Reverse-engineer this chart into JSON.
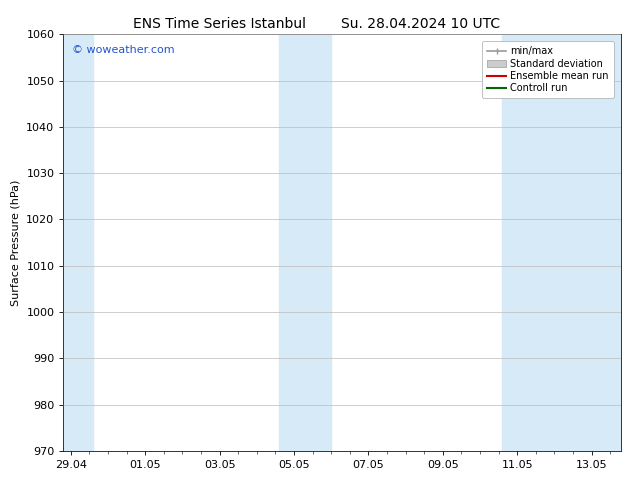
{
  "title_left": "ENS Time Series Istanbul",
  "title_right": "Su. 28.04.2024 10 UTC",
  "ylabel": "Surface Pressure (hPa)",
  "ylim": [
    970,
    1060
  ],
  "yticks": [
    970,
    980,
    990,
    1000,
    1010,
    1020,
    1030,
    1040,
    1050,
    1060
  ],
  "x_labels": [
    "29.04",
    "01.05",
    "03.05",
    "05.05",
    "07.05",
    "09.05",
    "11.05",
    "13.05"
  ],
  "x_tick_positions": [
    0,
    2,
    4,
    6,
    8,
    10,
    12,
    14
  ],
  "x_min": -0.2,
  "x_max": 14.8,
  "shaded_bands": [
    {
      "x_start": -0.2,
      "x_end": 0.6
    },
    {
      "x_start": 5.6,
      "x_end": 7.0
    },
    {
      "x_start": 11.6,
      "x_end": 12.5
    },
    {
      "x_start": 12.5,
      "x_end": 14.8
    }
  ],
  "band_color": "#d6eaf8",
  "background_color": "#ffffff",
  "plot_bg_color": "#ffffff",
  "grid_color": "#bbbbbb",
  "title_fontsize": 10,
  "axis_label_fontsize": 8,
  "tick_fontsize": 8,
  "watermark_text": "© woweather.com",
  "watermark_color": "#2255cc",
  "legend_items": [
    {
      "label": "min/max",
      "color": "#999999",
      "type": "hline"
    },
    {
      "label": "Standard deviation",
      "color": "#cccccc",
      "type": "band"
    },
    {
      "label": "Ensemble mean run",
      "color": "#cc0000",
      "type": "line"
    },
    {
      "label": "Controll run",
      "color": "#006600",
      "type": "line"
    }
  ]
}
